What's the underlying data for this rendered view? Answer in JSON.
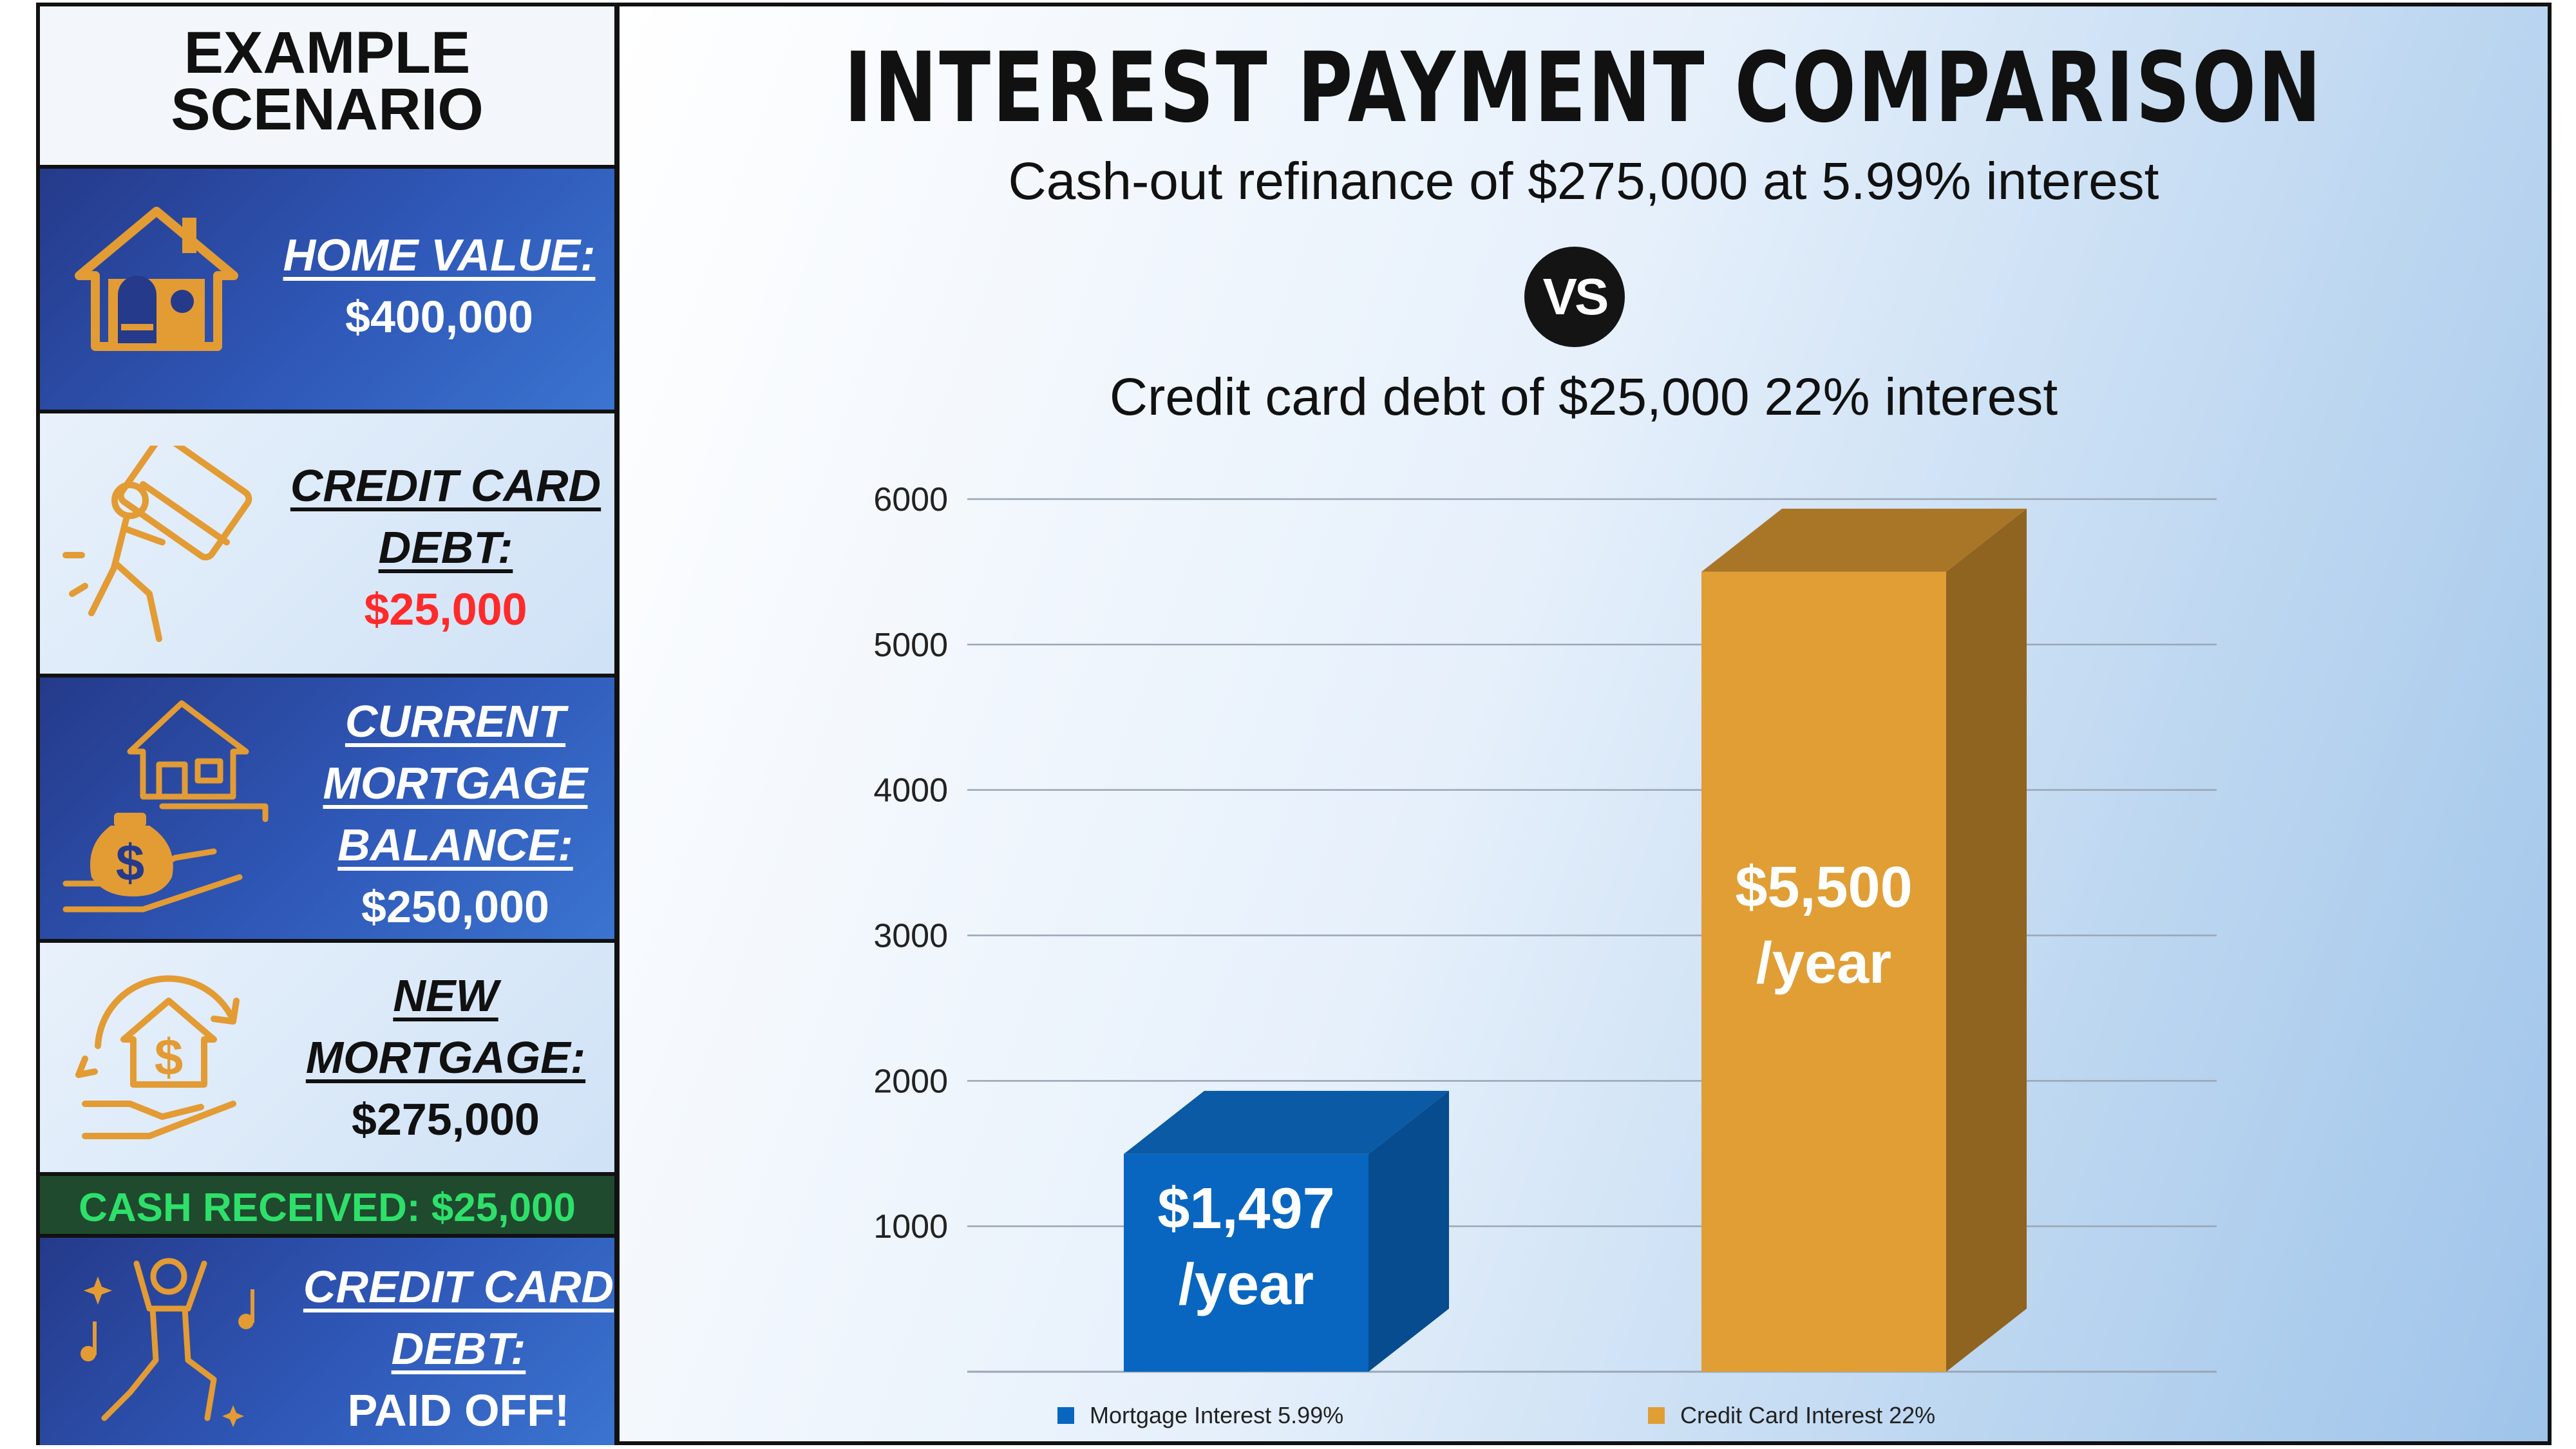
{
  "sidebar": {
    "title_line1": "EXAMPLE",
    "title_line2": "SCENARIO",
    "home": {
      "label": "HOME VALUE:",
      "value": "$400,000"
    },
    "credit_card": {
      "label_line1": "CREDIT CARD",
      "label_line2": "DEBT:",
      "value": "$25,000"
    },
    "current_mortgage": {
      "label_line1": "CURRENT",
      "label_line2": "MORTGAGE",
      "label_line3": "BALANCE:",
      "value": "$250,000"
    },
    "new_mortgage": {
      "label_line1": "NEW",
      "label_line2": "MORTGAGE:",
      "value": "$275,000"
    },
    "cash_received": "CASH RECEIVED: $25,000",
    "paid_off": {
      "label_line1": "CREDIT CARD",
      "label_line2": "DEBT:",
      "value": "PAID OFF!"
    }
  },
  "header": {
    "subtitle1": "Cash-out refinance of $275,000 at 5.99% interest",
    "vs": "VS",
    "subtitle2": "Credit card debt of $25,000 22% interest"
  },
  "colors": {
    "mortgage": "#0866c0",
    "credit_card": "#e09e35",
    "cash_text": "#2ee06a",
    "cc_value": "#ff2a2a"
  },
  "icons": [
    "house-icon",
    "credit-card-carry-icon",
    "mortgage-money-bag-icon",
    "home-refinance-hand-icon",
    "celebration-dance-icon"
  ],
  "chart_data": {
    "type": "bar",
    "title": "INTEREST PAYMENT COMPARISON",
    "categories": [
      "Mortgage Interest 5.99%",
      "Credit Card Interest 22%"
    ],
    "values": [
      1497,
      5500
    ],
    "data_labels": [
      [
        "$1,497",
        "/year"
      ],
      [
        "$5,500",
        "/year"
      ]
    ],
    "yticks": [
      1000,
      2000,
      3000,
      4000,
      5000,
      6000
    ],
    "ylim": [
      0,
      6000
    ],
    "legend": [
      "Mortgage Interest 5.99%",
      "Credit Card Interest 22%"
    ],
    "legend_position": "bottom",
    "grid": true
  }
}
